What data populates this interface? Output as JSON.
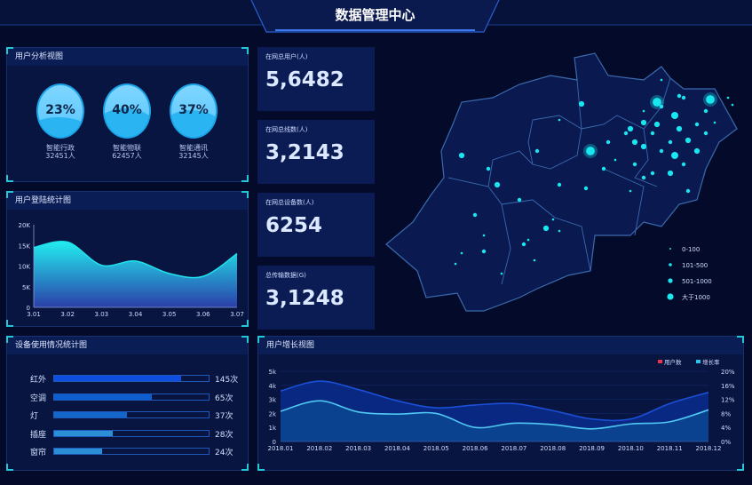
{
  "header": {
    "title": "数据管理中心"
  },
  "user_analysis": {
    "title": "用户分析视图",
    "items": [
      {
        "percent": "23%",
        "fill": 23,
        "name": "智能行政",
        "count": "32451人"
      },
      {
        "percent": "40%",
        "fill": 40,
        "name": "智能物联",
        "count": "62457人"
      },
      {
        "percent": "37%",
        "fill": 37,
        "name": "智能通讯",
        "count": "32145人"
      }
    ]
  },
  "login_chart": {
    "title": "用户登陆统计图"
  },
  "device_usage": {
    "title": "设备使用情况统计图",
    "items": [
      {
        "label": "红外",
        "value": "145次",
        "fill": 82,
        "color": "#0f4fe0"
      },
      {
        "label": "空调",
        "value": "65次",
        "fill": 63,
        "color": "#0d5fd0"
      },
      {
        "label": "灯",
        "value": "37次",
        "fill": 47,
        "color": "#1466c8"
      },
      {
        "label": "插座",
        "value": "28次",
        "fill": 38,
        "color": "#2a8fd4"
      },
      {
        "label": "窗帘",
        "value": "24次",
        "fill": 31,
        "color": "#2a8fd4"
      }
    ]
  },
  "stats": [
    {
      "label": "在网总用户(人)",
      "value": "5,6482"
    },
    {
      "label": "在网总线数(人)",
      "value": "3,2143"
    },
    {
      "label": "在网总设备数(人)",
      "value": "6254"
    },
    {
      "label": "总传输数据(G)",
      "value": "3,1248"
    }
  ],
  "map": {
    "legend": [
      "0-100",
      "101-500",
      "501-1000",
      "大于1000"
    ],
    "dot_color": "#19e6f0"
  },
  "growth_chart": {
    "title": "用户增长视图"
  },
  "chart_data": [
    {
      "type": "area",
      "categories": [
        "3.01",
        "3.02",
        "3.03",
        "3.04",
        "3.05",
        "3.06",
        "3.07"
      ],
      "values": [
        14500,
        15800,
        10200,
        11200,
        8200,
        7500,
        13000
      ],
      "ylim": [
        0,
        20000
      ],
      "yticks": [
        "0",
        "5K",
        "10K",
        "15K",
        "20K"
      ],
      "color": "#1fe3ee"
    },
    {
      "type": "area",
      "categories": [
        "2018.01",
        "2018.02",
        "2018.03",
        "2018.04",
        "2018.05",
        "2018.06",
        "2018.07",
        "2018.08",
        "2018.09",
        "2018.10",
        "2018.11",
        "2018.12"
      ],
      "series": [
        {
          "name": "用户数",
          "axis": "left",
          "values": [
            3600,
            4300,
            3700,
            2900,
            2400,
            2600,
            2700,
            2200,
            1600,
            1600,
            2700,
            3500
          ],
          "legend_color": "#e8344e",
          "line_color": "#1b4fd6"
        },
        {
          "name": "增长率",
          "axis": "right",
          "values": [
            8.6,
            11.6,
            8.4,
            7.8,
            8.0,
            4.0,
            5.2,
            4.8,
            3.6,
            5.0,
            5.6,
            9.0
          ],
          "legend_color": "#28c6e8",
          "line_color": "#4fc8f2"
        }
      ],
      "ylim_left": [
        0,
        5000
      ],
      "yticks_left": [
        "0",
        "1k",
        "2k",
        "3k",
        "4k",
        "5k"
      ],
      "ylim_right": [
        0,
        20
      ],
      "yticks_right": [
        "0%",
        "4%",
        "8%",
        "12%",
        "16%",
        "20%"
      ],
      "legend": "top-right",
      "grid": true
    }
  ]
}
